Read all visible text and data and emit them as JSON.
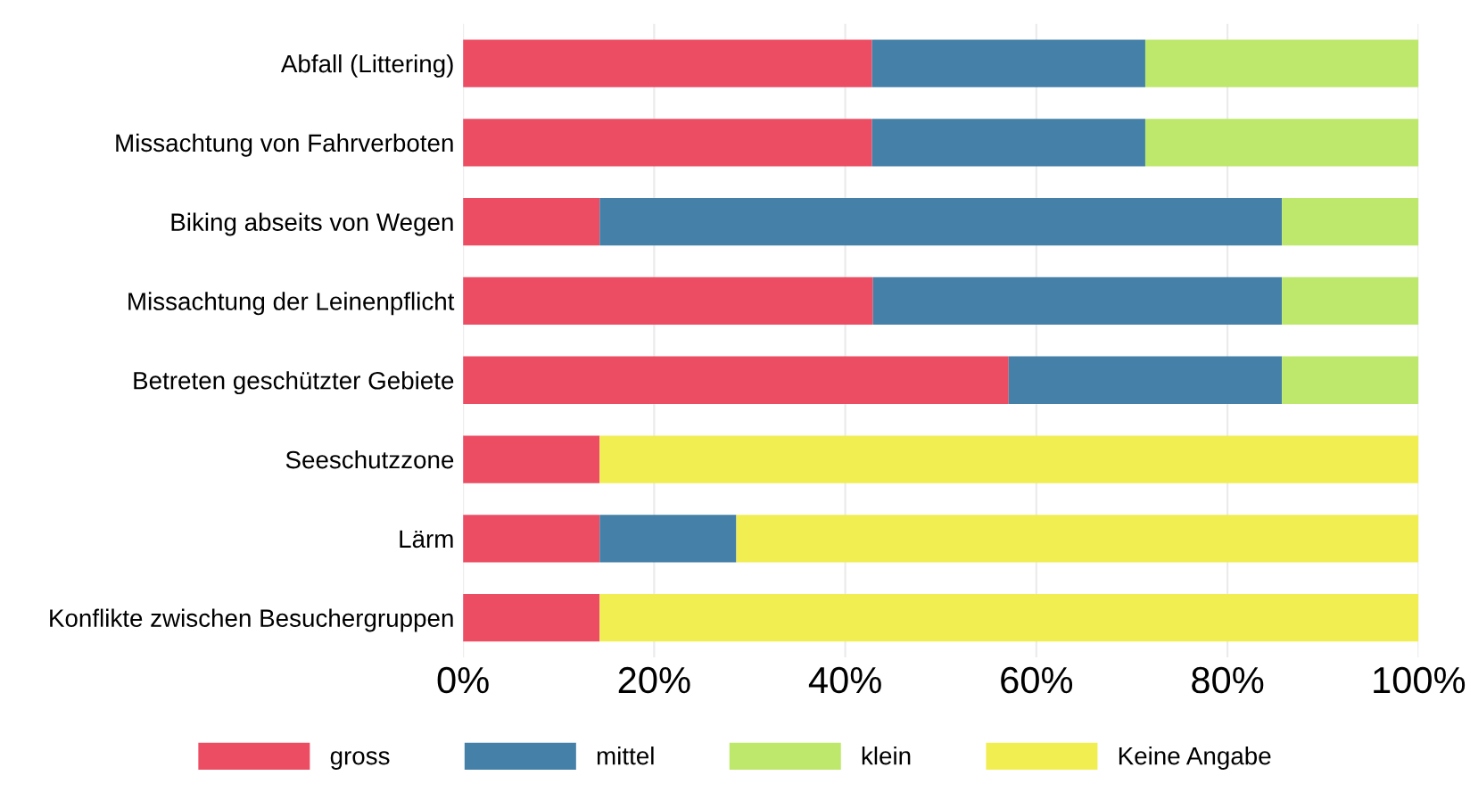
{
  "chart_data": {
    "type": "bar",
    "orientation": "horizontal",
    "stacked": true,
    "categories": [
      "Abfall (Littering)",
      "Missachtung von Fahrverboten",
      "Biking abseits von Wegen",
      "Missachtung der Leinenpflicht",
      "Betreten geschützter Gebiete",
      "Seeschutzzone",
      "Lärm",
      "Konflikte zwischen Besuchergruppen"
    ],
    "series": [
      {
        "name": "gross",
        "color": "#ec4d63",
        "values": [
          42.8,
          42.8,
          14.3,
          42.9,
          57.1,
          14.3,
          14.3,
          14.3
        ]
      },
      {
        "name": "mittel",
        "color": "#4480a8",
        "values": [
          28.6,
          28.6,
          71.4,
          42.8,
          28.6,
          0,
          14.3,
          0
        ]
      },
      {
        "name": "klein",
        "color": "#bde86b",
        "values": [
          28.6,
          28.6,
          14.3,
          14.3,
          14.3,
          0,
          0,
          0
        ]
      },
      {
        "name": "Keine Angabe",
        "color": "#f1ee52",
        "values": [
          0,
          0,
          0,
          0,
          0,
          85.7,
          71.4,
          85.7
        ]
      }
    ],
    "xlim": [
      0,
      100
    ],
    "xticks": [
      {
        "value": 0,
        "label": "0%"
      },
      {
        "value": 20,
        "label": "20%"
      },
      {
        "value": 40,
        "label": "40%"
      },
      {
        "value": 60,
        "label": "60%"
      },
      {
        "value": 80,
        "label": "80%"
      },
      {
        "value": 100,
        "label": "100%"
      }
    ],
    "grid": "x",
    "legend": "bottom"
  }
}
